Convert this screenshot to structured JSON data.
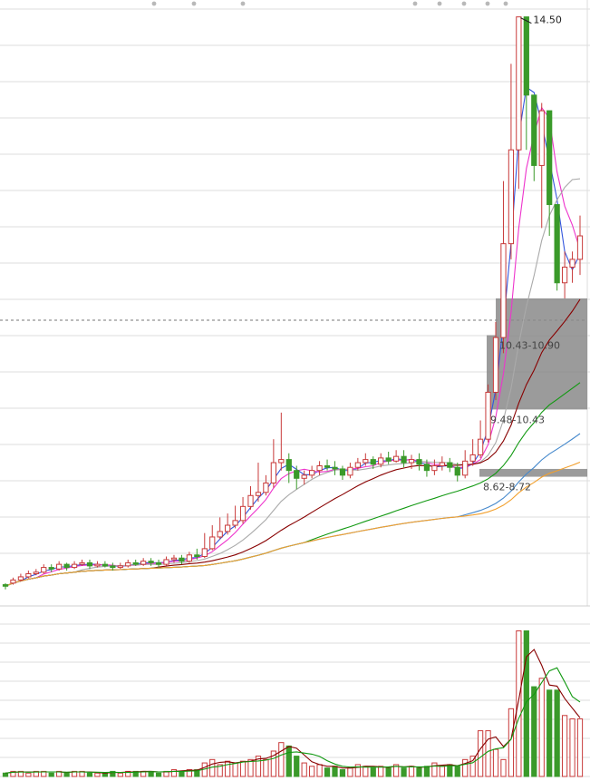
{
  "chart_data": {
    "type": "candlestick",
    "title": "",
    "xlabel": "",
    "ylabel": "",
    "price_panel": {
      "ylim": [
        7.2,
        14.6
      ],
      "peak_label": "14.50",
      "candles": [
        [
          7.24,
          7.22,
          7.26,
          7.18
        ],
        [
          7.26,
          7.3,
          7.33,
          7.24
        ],
        [
          7.3,
          7.34,
          7.38,
          7.28
        ],
        [
          7.34,
          7.38,
          7.42,
          7.32
        ],
        [
          7.38,
          7.4,
          7.44,
          7.36
        ],
        [
          7.4,
          7.46,
          7.5,
          7.38
        ],
        [
          7.46,
          7.44,
          7.5,
          7.4
        ],
        [
          7.44,
          7.5,
          7.54,
          7.42
        ],
        [
          7.5,
          7.46,
          7.52,
          7.42
        ],
        [
          7.46,
          7.5,
          7.54,
          7.44
        ],
        [
          7.5,
          7.52,
          7.56,
          7.48
        ],
        [
          7.52,
          7.48,
          7.56,
          7.44
        ],
        [
          7.48,
          7.5,
          7.54,
          7.46
        ],
        [
          7.5,
          7.48,
          7.54,
          7.46
        ],
        [
          7.48,
          7.46,
          7.52,
          7.42
        ],
        [
          7.46,
          7.48,
          7.52,
          7.44
        ],
        [
          7.48,
          7.52,
          7.56,
          7.46
        ],
        [
          7.52,
          7.5,
          7.56,
          7.48
        ],
        [
          7.5,
          7.54,
          7.58,
          7.48
        ],
        [
          7.54,
          7.52,
          7.58,
          7.48
        ],
        [
          7.52,
          7.5,
          7.56,
          7.46
        ],
        [
          7.5,
          7.56,
          7.6,
          7.48
        ],
        [
          7.56,
          7.58,
          7.62,
          7.52
        ],
        [
          7.58,
          7.54,
          7.62,
          7.5
        ],
        [
          7.54,
          7.62,
          7.66,
          7.52
        ],
        [
          7.62,
          7.6,
          7.7,
          7.56
        ],
        [
          7.6,
          7.7,
          7.9,
          7.58
        ],
        [
          7.7,
          7.85,
          8.0,
          7.68
        ],
        [
          7.85,
          7.92,
          8.1,
          7.82
        ],
        [
          7.92,
          8.0,
          8.15,
          7.88
        ],
        [
          8.0,
          8.06,
          8.25,
          7.96
        ],
        [
          8.06,
          8.24,
          8.36,
          8.02
        ],
        [
          8.24,
          8.38,
          8.5,
          8.2
        ],
        [
          8.38,
          8.42,
          8.8,
          8.3
        ],
        [
          8.42,
          8.54,
          8.64,
          8.38
        ],
        [
          8.54,
          8.8,
          9.1,
          8.48
        ],
        [
          8.8,
          8.84,
          9.44,
          8.7
        ],
        [
          8.84,
          8.7,
          8.92,
          8.54
        ],
        [
          8.7,
          8.6,
          8.76,
          8.46
        ],
        [
          8.6,
          8.64,
          8.7,
          8.52
        ],
        [
          8.64,
          8.7,
          8.76,
          8.6
        ],
        [
          8.7,
          8.76,
          8.82,
          8.64
        ],
        [
          8.76,
          8.74,
          8.84,
          8.7
        ],
        [
          8.74,
          8.72,
          8.82,
          8.64
        ],
        [
          8.72,
          8.64,
          8.76,
          8.58
        ],
        [
          8.64,
          8.74,
          8.8,
          8.6
        ],
        [
          8.74,
          8.8,
          8.86,
          8.7
        ],
        [
          8.8,
          8.84,
          8.92,
          8.76
        ],
        [
          8.84,
          8.78,
          8.88,
          8.72
        ],
        [
          8.78,
          8.86,
          8.92,
          8.74
        ],
        [
          8.86,
          8.82,
          8.94,
          8.78
        ],
        [
          8.82,
          8.88,
          8.96,
          8.8
        ],
        [
          8.88,
          8.8,
          8.96,
          8.74
        ],
        [
          8.8,
          8.84,
          8.9,
          8.72
        ],
        [
          8.84,
          8.78,
          8.92,
          8.7
        ],
        [
          8.78,
          8.7,
          8.84,
          8.62
        ],
        [
          8.7,
          8.76,
          8.84,
          8.64
        ],
        [
          8.76,
          8.8,
          8.88,
          8.7
        ],
        [
          8.8,
          8.74,
          8.86,
          8.68
        ],
        [
          8.74,
          8.64,
          8.8,
          8.56
        ],
        [
          8.64,
          8.82,
          8.96,
          8.6
        ],
        [
          8.82,
          8.9,
          9.1,
          8.76
        ],
        [
          8.9,
          9.1,
          9.34,
          8.86
        ],
        [
          9.1,
          9.7,
          9.8,
          9.06
        ],
        [
          9.7,
          10.4,
          10.6,
          9.6
        ],
        [
          10.4,
          11.6,
          12.4,
          10.2
        ],
        [
          11.6,
          12.8,
          13.9,
          11.4
        ],
        [
          12.8,
          14.5,
          14.5,
          12.3
        ],
        [
          14.5,
          13.5,
          14.0,
          12.8
        ],
        [
          13.5,
          12.6,
          13.4,
          12.4
        ],
        [
          12.6,
          13.3,
          13.4,
          11.8
        ],
        [
          13.3,
          12.1,
          13.0,
          11.7
        ],
        [
          12.1,
          11.1,
          11.9,
          11.0
        ],
        [
          11.1,
          11.3,
          11.5,
          10.9
        ],
        [
          11.3,
          11.4,
          11.5,
          11.1
        ],
        [
          11.4,
          11.7,
          11.96,
          11.2
        ]
      ],
      "ma_lines": [
        {
          "color": "#3355dd"
        },
        {
          "color": "#ee33cc"
        },
        {
          "color": "#aaaaaa"
        },
        {
          "color": "#880000"
        },
        {
          "color": "#119911"
        },
        {
          "color": "#4488cc"
        },
        {
          "color": "#f2a02e"
        }
      ]
    },
    "zones": [
      {
        "label": "10.43-10.90",
        "low": 10.43,
        "high": 10.9
      },
      {
        "label": "9.48-10.43",
        "low": 9.48,
        "high": 10.43
      },
      {
        "label": "8.62-8.72",
        "low": 8.62,
        "high": 8.72
      }
    ],
    "volume_panel": {
      "ylim": [
        0,
        9
      ],
      "volumes": [
        0.2,
        0.3,
        0.3,
        0.2,
        0.3,
        0.3,
        0.2,
        0.3,
        0.2,
        0.3,
        0.3,
        0.2,
        0.2,
        0.2,
        0.3,
        0.2,
        0.3,
        0.3,
        0.3,
        0.3,
        0.2,
        0.3,
        0.4,
        0.3,
        0.4,
        0.4,
        0.8,
        1.0,
        0.7,
        0.9,
        0.8,
        0.9,
        1.0,
        1.2,
        1.0,
        1.5,
        2.0,
        1.8,
        1.2,
        0.8,
        0.6,
        0.7,
        0.5,
        0.6,
        0.4,
        0.5,
        0.7,
        0.6,
        0.5,
        0.6,
        0.5,
        0.7,
        0.5,
        0.6,
        0.5,
        0.6,
        0.8,
        0.6,
        0.7,
        0.6,
        1.0,
        1.2,
        2.7,
        2.7,
        1.6,
        1.0,
        4.0,
        8.6,
        8.6,
        5.3,
        5.8,
        5.1,
        5.1,
        3.6,
        3.4,
        3.4
      ],
      "ma_lines": [
        {
          "color": "#880000"
        },
        {
          "color": "#119911"
        }
      ]
    },
    "colors": {
      "up": "#c83a3a",
      "down": "#3a9a2a",
      "zone": "#8a8a8a",
      "grid": "#dddddd"
    }
  }
}
